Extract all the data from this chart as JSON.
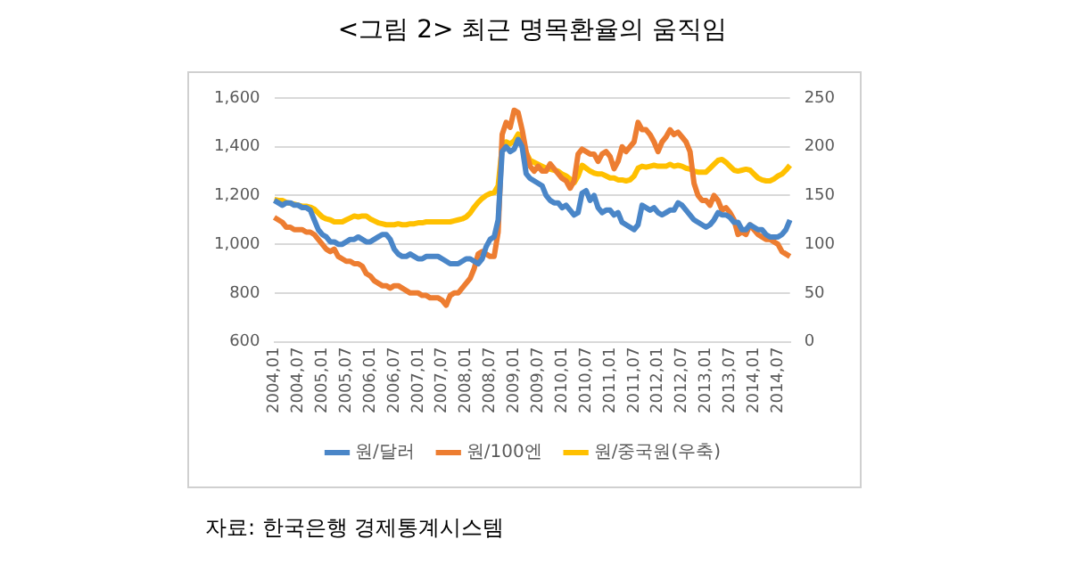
{
  "chart_data": {
    "type": "line",
    "title": "<그림 2> 최근 명목환율의 움직임",
    "annotations": [
      "자료: 한국은행 경제통계시스템"
    ],
    "categories": [
      "2004,01",
      null,
      null,
      null,
      null,
      null,
      "2004,07",
      null,
      null,
      null,
      null,
      null,
      "2005,01",
      null,
      null,
      null,
      null,
      null,
      "2005,07",
      null,
      null,
      null,
      null,
      null,
      "2006,01",
      null,
      null,
      null,
      null,
      null,
      "2006,07",
      null,
      null,
      null,
      null,
      null,
      "2007,01",
      null,
      null,
      null,
      null,
      null,
      "2007,07",
      null,
      null,
      null,
      null,
      null,
      "2008,01",
      null,
      null,
      null,
      null,
      null,
      "2008,07",
      null,
      null,
      null,
      null,
      null,
      "2009,01",
      null,
      null,
      null,
      null,
      null,
      "2009,07",
      null,
      null,
      null,
      null,
      null,
      "2010,01",
      null,
      null,
      null,
      null,
      null,
      "2010,07",
      null,
      null,
      null,
      null,
      null,
      "2011,01",
      null,
      null,
      null,
      null,
      null,
      "2011,07",
      null,
      null,
      null,
      null,
      null,
      "2012,01",
      null,
      null,
      null,
      null,
      null,
      "2012,07",
      null,
      null,
      null,
      null,
      null,
      "2013,01",
      null,
      null,
      null,
      null,
      null,
      "2013,07",
      null,
      null,
      null,
      null,
      null,
      "2014,01",
      null,
      null,
      null,
      null,
      null,
      "2014,07",
      null,
      null,
      null
    ],
    "series": [
      {
        "name": "원/달러",
        "color": "#4a86c8",
        "values": [
          1180,
          1170,
          1160,
          1170,
          1170,
          1160,
          1160,
          1150,
          1150,
          1140,
          1100,
          1060,
          1040,
          1030,
          1010,
          1010,
          1000,
          1000,
          1010,
          1020,
          1020,
          1030,
          1020,
          1010,
          1010,
          1020,
          1030,
          1040,
          1040,
          1020,
          980,
          960,
          950,
          950,
          960,
          950,
          940,
          940,
          950,
          950,
          950,
          950,
          940,
          930,
          920,
          920,
          920,
          930,
          940,
          940,
          930,
          920,
          940,
          990,
          1020,
          1030,
          1100,
          1380,
          1400,
          1380,
          1390,
          1430,
          1400,
          1290,
          1270,
          1260,
          1250,
          1240,
          1200,
          1180,
          1170,
          1170,
          1150,
          1160,
          1140,
          1120,
          1130,
          1210,
          1220,
          1180,
          1200,
          1150,
          1130,
          1140,
          1140,
          1120,
          1130,
          1090,
          1080,
          1070,
          1060,
          1080,
          1160,
          1150,
          1140,
          1150,
          1130,
          1120,
          1130,
          1140,
          1140,
          1170,
          1160,
          1140,
          1120,
          1100,
          1090,
          1080,
          1070,
          1080,
          1100,
          1130,
          1120,
          1120,
          1110,
          1090,
          1090,
          1060,
          1060,
          1080,
          1070,
          1060,
          1060,
          1040,
          1030,
          1030,
          1030,
          1040,
          1060,
          1100
        ]
      },
      {
        "name": "원/100엔",
        "color": "#ed7d31",
        "values": [
          1110,
          1100,
          1090,
          1070,
          1070,
          1060,
          1060,
          1060,
          1050,
          1050,
          1040,
          1020,
          1000,
          980,
          970,
          980,
          950,
          940,
          930,
          930,
          920,
          920,
          910,
          880,
          870,
          850,
          840,
          830,
          830,
          820,
          830,
          830,
          820,
          810,
          800,
          800,
          800,
          790,
          790,
          780,
          780,
          780,
          770,
          750,
          790,
          800,
          800,
          820,
          840,
          860,
          900,
          960,
          970,
          960,
          950,
          950,
          1050,
          1450,
          1500,
          1480,
          1550,
          1540,
          1470,
          1380,
          1320,
          1300,
          1320,
          1300,
          1300,
          1330,
          1310,
          1290,
          1270,
          1260,
          1230,
          1260,
          1370,
          1390,
          1380,
          1370,
          1370,
          1340,
          1370,
          1380,
          1360,
          1310,
          1340,
          1400,
          1380,
          1400,
          1420,
          1500,
          1470,
          1470,
          1450,
          1420,
          1380,
          1420,
          1440,
          1470,
          1450,
          1460,
          1440,
          1420,
          1380,
          1250,
          1200,
          1180,
          1180,
          1160,
          1200,
          1180,
          1140,
          1150,
          1130,
          1100,
          1040,
          1050,
          1040,
          1080,
          1060,
          1040,
          1030,
          1020,
          1020,
          1010,
          1000,
          970,
          960,
          950
        ]
      },
      {
        "name": "원/중국원(우축)",
        "color": "#ffc000",
        "axis": "y2",
        "values": [
          146,
          145,
          145,
          143,
          142,
          141,
          140,
          139,
          139,
          138,
          136,
          132,
          128,
          126,
          125,
          123,
          123,
          123,
          125,
          127,
          129,
          128,
          129,
          129,
          126,
          124,
          122,
          121,
          120,
          120,
          120,
          121,
          120,
          120,
          121,
          121,
          122,
          122,
          123,
          123,
          123,
          123,
          123,
          123,
          123,
          124,
          125,
          126,
          128,
          132,
          138,
          143,
          147,
          150,
          152,
          153,
          160,
          200,
          205,
          203,
          206,
          213,
          206,
          194,
          186,
          184,
          182,
          180,
          178,
          177,
          176,
          175,
          172,
          170,
          167,
          163,
          170,
          181,
          178,
          175,
          173,
          172,
          172,
          170,
          168,
          168,
          166,
          166,
          165,
          166,
          170,
          178,
          180,
          179,
          180,
          181,
          180,
          180,
          180,
          182,
          180,
          181,
          180,
          178,
          177,
          175,
          174,
          174,
          174,
          178,
          182,
          186,
          187,
          184,
          180,
          176,
          175,
          176,
          177,
          176,
          172,
          168,
          166,
          165,
          165,
          167,
          170,
          172,
          176,
          181
        ]
      }
    ],
    "ylim": [
      600,
      1600
    ],
    "yticks": [
      {
        "value": 600,
        "label": "600"
      },
      {
        "value": 800,
        "label": "800"
      },
      {
        "value": 1000,
        "label": "1,000"
      },
      {
        "value": 1200,
        "label": "1,200"
      },
      {
        "value": 1400,
        "label": "1,400"
      },
      {
        "value": 1600,
        "label": "1,600"
      }
    ],
    "y2lim": [
      0,
      250
    ],
    "y2ticks": [
      0,
      50,
      100,
      150,
      200,
      250
    ],
    "grid": "y",
    "legend": "bottom",
    "marker": "none"
  }
}
